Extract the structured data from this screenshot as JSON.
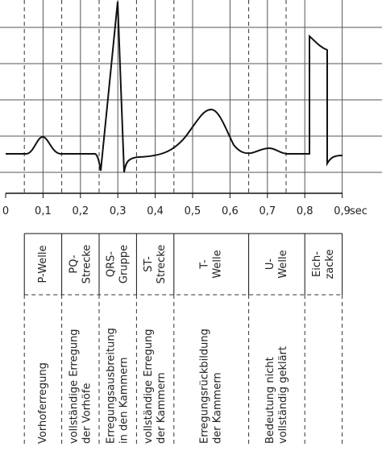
{
  "axis": {
    "ticks": [
      "0",
      "0,1",
      "0,2",
      "0,3",
      "0,4",
      "0,5",
      "0,6",
      "0,7",
      "0,8",
      "0,9"
    ],
    "unit": "sec"
  },
  "table": {
    "headers": [
      [
        "P-Welle"
      ],
      [
        "PQ-",
        "Strecke"
      ],
      [
        "QRS-",
        "Gruppe"
      ],
      [
        "ST-",
        "Strecke"
      ],
      [
        "T-",
        "Welle"
      ],
      [
        "U-",
        "Welle"
      ],
      [
        "Eich-",
        "zacke"
      ]
    ],
    "descriptions": [
      [
        "Vorhoferregung"
      ],
      [
        "vollständige Erregung",
        "der Vorhöfe"
      ],
      [
        "Erregungsausbreitung",
        "in den Kammern"
      ],
      [
        "vollständige Erregung",
        "der Kammern"
      ],
      [
        "Erregungsrückbildung",
        "der Kammern"
      ],
      [
        "Bedeutung nicht",
        "vollständig geklärt"
      ],
      []
    ]
  }
}
